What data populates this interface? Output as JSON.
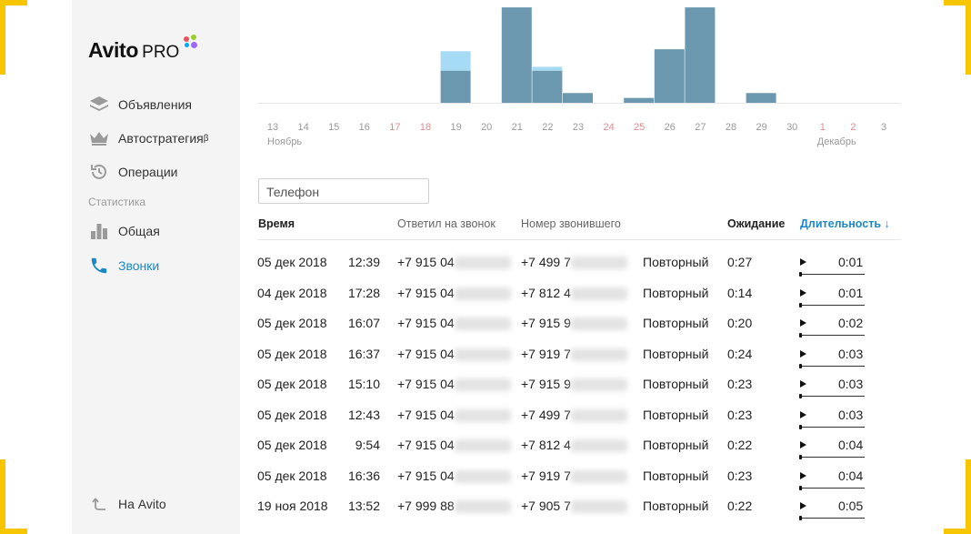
{
  "brand": {
    "name": "Avito",
    "suffix": "PRO"
  },
  "colors": {
    "accent": "#1e88c7",
    "bar": "#6b98ae",
    "bar_light": "#a6dbf5",
    "frame": "#f7c600",
    "logo_dots": [
      "#e8505b",
      "#97cf26",
      "#00aaff",
      "#a169f7"
    ]
  },
  "sidebar": {
    "items": [
      {
        "label": "Объявления",
        "icon": "layers-icon"
      },
      {
        "label": "Автостратегия",
        "sup": "β",
        "icon": "crown-icon"
      },
      {
        "label": "Операции",
        "icon": "history-icon"
      }
    ],
    "section": "Статистика",
    "stats_items": [
      {
        "label": "Общая",
        "icon": "bar-chart-icon"
      },
      {
        "label": "Звонки",
        "icon": "phone-icon",
        "active": true
      }
    ],
    "back": {
      "label": "На Avito",
      "icon": "back-arrow-icon"
    }
  },
  "chart_data": {
    "type": "bar",
    "categories": [
      "13",
      "14",
      "15",
      "16",
      "17",
      "18",
      "19",
      "20",
      "21",
      "22",
      "23",
      "24",
      "25",
      "26",
      "27",
      "28",
      "29",
      "30",
      "1",
      "2",
      "3"
    ],
    "weekend": [
      "17",
      "18",
      "24",
      "25",
      "1",
      "2"
    ],
    "month_labels": [
      {
        "at": "13",
        "label": "Ноябрь"
      },
      {
        "at": "1",
        "label": "Декабрь"
      }
    ],
    "series": [
      {
        "values": [
          0,
          0,
          0,
          0,
          0,
          0,
          3.3,
          0,
          9.8,
          3.3,
          1,
          0,
          0.5,
          5.5,
          9.8,
          0,
          1,
          0,
          0,
          0,
          0
        ]
      },
      {
        "values": [
          0,
          0,
          0,
          0,
          0,
          0,
          2,
          0,
          0,
          0.4,
          0,
          0,
          0,
          0,
          0,
          0,
          0,
          0,
          0,
          0,
          0
        ]
      }
    ],
    "ylim": [
      0,
      10
    ]
  },
  "filter": {
    "value": "Телефон"
  },
  "table": {
    "headers": {
      "time": "Время",
      "answered": "Ответил на звонок",
      "caller": "Номер звонившего",
      "wait": "Ожидание",
      "duration": "Длительность ↓"
    },
    "rows": [
      {
        "date": "05 дек 2018",
        "time": "12:39",
        "answered": "+7 915 04",
        "caller": "+7 499 7",
        "type": "Повторный",
        "wait": "0:27",
        "duration": "0:01"
      },
      {
        "date": "04 дек 2018",
        "time": "17:28",
        "answered": "+7 915 04",
        "caller": "+7 812 4",
        "type": "Повторный",
        "wait": "0:14",
        "duration": "0:01"
      },
      {
        "date": "05 дек 2018",
        "time": "16:07",
        "answered": "+7 915 04",
        "caller": "+7 915 9",
        "type": "Повторный",
        "wait": "0:20",
        "duration": "0:02"
      },
      {
        "date": "05 дек 2018",
        "time": "16:37",
        "answered": "+7 915 04",
        "caller": "+7 919 7",
        "type": "Повторный",
        "wait": "0:24",
        "duration": "0:03"
      },
      {
        "date": "05 дек 2018",
        "time": "15:10",
        "answered": "+7 915 04",
        "caller": "+7 915 9",
        "type": "Повторный",
        "wait": "0:23",
        "duration": "0:03"
      },
      {
        "date": "05 дек 2018",
        "time": "12:43",
        "answered": "+7 915 04",
        "caller": "+7 499 7",
        "type": "Повторный",
        "wait": "0:23",
        "duration": "0:03"
      },
      {
        "date": "05 дек 2018",
        "time": "9:54",
        "answered": "+7 915 04",
        "caller": "+7 812 4",
        "type": "Повторный",
        "wait": "0:22",
        "duration": "0:04"
      },
      {
        "date": "05 дек 2018",
        "time": "16:36",
        "answered": "+7 915 04",
        "caller": "+7 919 7",
        "type": "Повторный",
        "wait": "0:23",
        "duration": "0:04"
      },
      {
        "date": "19 ноя 2018",
        "time": "13:52",
        "answered": "+7 999 88",
        "caller": "+7 905 7",
        "type": "Повторный",
        "wait": "0:22",
        "duration": "0:05"
      }
    ]
  }
}
